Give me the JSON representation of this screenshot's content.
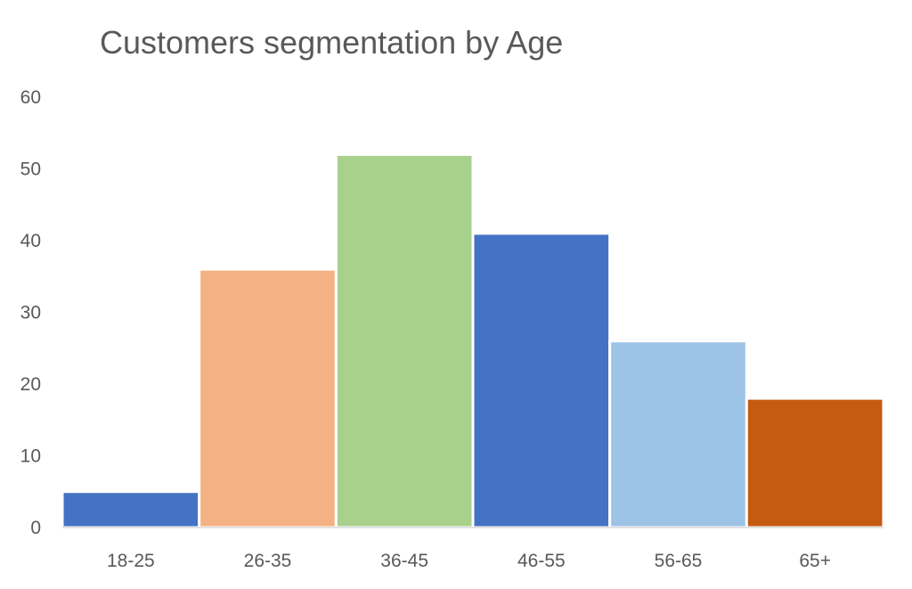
{
  "chart_data": {
    "type": "bar",
    "title": "Customers segmentation by Age",
    "xlabel": "",
    "ylabel": "",
    "categories": [
      "18-25",
      "26-35",
      "36-45",
      "46-55",
      "56-65",
      "65+"
    ],
    "values": [
      5,
      36,
      52,
      41,
      26,
      18
    ],
    "colors": [
      "#4472c4",
      "#f4b183",
      "#a9d18e",
      "#4472c4",
      "#9dc3e6",
      "#c55a11"
    ],
    "ylim": [
      0,
      60
    ],
    "yticks": [
      0,
      10,
      20,
      30,
      40,
      50,
      60
    ],
    "grid": false,
    "legend": "none"
  }
}
